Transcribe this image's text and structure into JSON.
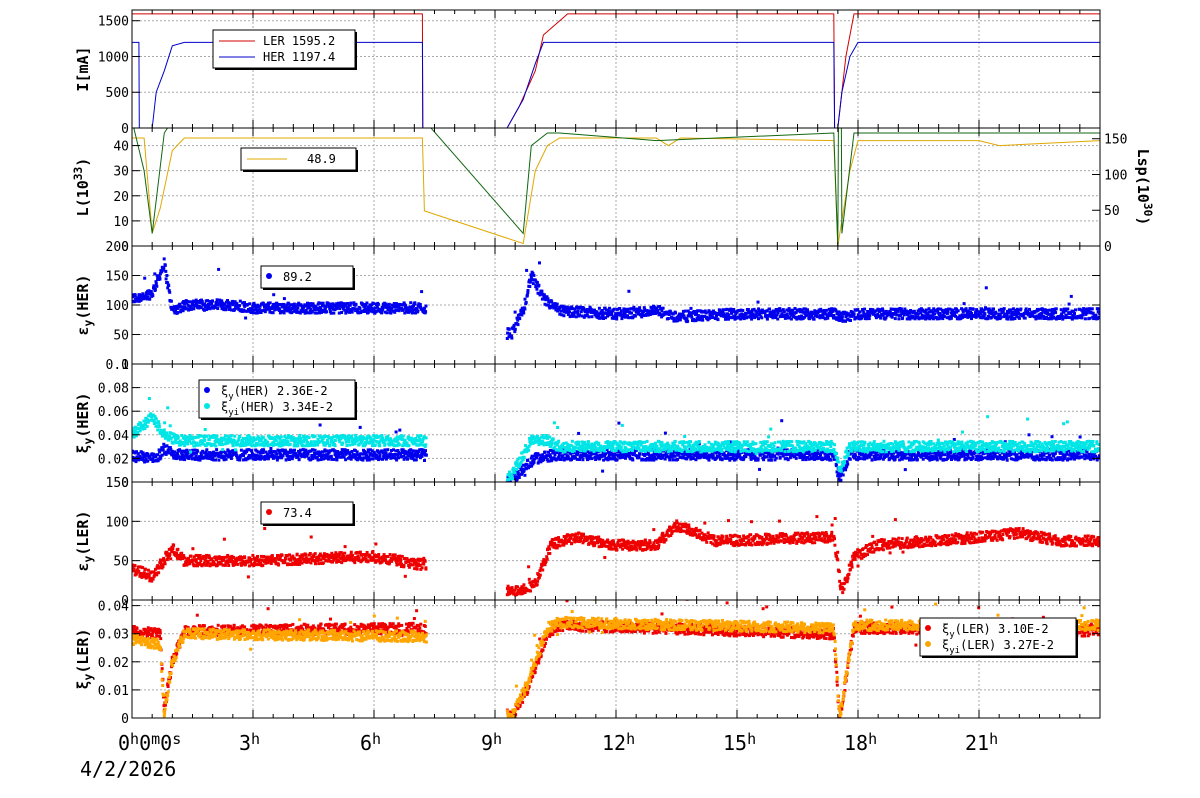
{
  "chart_data": [
    {
      "type": "line",
      "ylabel": "I[mA]",
      "ylim": [
        0,
        1650
      ],
      "yticks": [
        0,
        500,
        1000,
        1500
      ],
      "legend": {
        "placement": "top-left",
        "entries": [
          {
            "name": "LER",
            "value": "1595.2",
            "color": "#d40000"
          },
          {
            "name": "HER",
            "value": "1197.4",
            "color": "#0000cc"
          }
        ]
      },
      "series": [
        {
          "name": "LER",
          "color": "#d40000",
          "points": [
            [
              0,
              1595
            ],
            [
              7.2,
              1595
            ],
            [
              7.21,
              0
            ],
            [
              9.3,
              0
            ],
            [
              9.6,
              300
            ],
            [
              10.0,
              800
            ],
            [
              10.2,
              1300
            ],
            [
              10.8,
              1595
            ],
            [
              17.4,
              1595
            ],
            [
              17.42,
              0
            ],
            [
              17.5,
              0
            ],
            [
              17.7,
              1000
            ],
            [
              17.9,
              1595
            ],
            [
              24,
              1595
            ]
          ]
        },
        {
          "name": "HER",
          "color": "#0000cc",
          "points": [
            [
              0,
              1197
            ],
            [
              0.17,
              1197
            ],
            [
              0.18,
              0
            ],
            [
              0.5,
              0
            ],
            [
              0.6,
              500
            ],
            [
              0.8,
              800
            ],
            [
              1.0,
              1150
            ],
            [
              1.3,
              1197
            ],
            [
              7.2,
              1197
            ],
            [
              7.21,
              0
            ],
            [
              9.3,
              0
            ],
            [
              9.7,
              400
            ],
            [
              10.0,
              900
            ],
            [
              10.2,
              1197
            ],
            [
              17.4,
              1197
            ],
            [
              17.42,
              0
            ],
            [
              17.5,
              0
            ],
            [
              17.6,
              500
            ],
            [
              17.8,
              1000
            ],
            [
              18.0,
              1197
            ],
            [
              24,
              1197
            ]
          ]
        }
      ]
    },
    {
      "type": "line",
      "ylabel": "L(10",
      "ylabel_sup": "33",
      "ylabel_end": ")",
      "ylim": [
        0,
        47
      ],
      "yticks": [
        0,
        10,
        20,
        30,
        40
      ],
      "y2label": "Lsp(10",
      "y2label_sup": "30",
      "y2label_end": ")",
      "y2lim": [
        0,
        165
      ],
      "y2ticks": [
        0,
        50,
        100,
        150
      ],
      "legend": {
        "placement": "top-left",
        "entries": [
          {
            "name": "",
            "value": "48.9",
            "color": "#e0a800"
          }
        ]
      },
      "series": [
        {
          "name": "L",
          "color": "#e0a800",
          "points": [
            [
              0,
              43
            ],
            [
              0.3,
              43
            ],
            [
              0.5,
              5
            ],
            [
              0.7,
              15
            ],
            [
              1.0,
              38
            ],
            [
              1.3,
              43
            ],
            [
              7.2,
              43
            ],
            [
              7.25,
              14
            ],
            [
              9.7,
              1
            ],
            [
              10.0,
              30
            ],
            [
              10.3,
              40
            ],
            [
              10.6,
              43
            ],
            [
              13,
              43
            ],
            [
              13.3,
              40
            ],
            [
              13.6,
              43
            ],
            [
              17.4,
              42
            ],
            [
              17.5,
              0
            ],
            [
              17.8,
              30
            ],
            [
              18.0,
              42
            ],
            [
              21,
              42
            ],
            [
              21.5,
              40
            ],
            [
              24,
              42
            ]
          ]
        },
        {
          "name": "Lsp",
          "color": "#116611",
          "points": [
            [
              0,
              50
            ],
            [
              0.3,
              30
            ],
            [
              0.5,
              5
            ],
            [
              0.8,
              45
            ],
            [
              1.0,
              50
            ],
            [
              7.2,
              50
            ],
            [
              7.25,
              50
            ],
            [
              9.7,
              5
            ],
            [
              9.9,
              40
            ],
            [
              10.3,
              45
            ],
            [
              10.6,
              45
            ],
            [
              13,
              42
            ],
            [
              17.4,
              45
            ],
            [
              17.5,
              0
            ],
            [
              17.55,
              160
            ],
            [
              17.6,
              5
            ],
            [
              17.9,
              45
            ],
            [
              24,
              45
            ]
          ]
        }
      ]
    },
    {
      "type": "scatter",
      "ylabel": "ε",
      "ylabel_sub": "y",
      "ylabel_end": "(HER)",
      "ylim": [
        0,
        200
      ],
      "yticks": [
        0,
        50,
        100,
        150,
        200
      ],
      "legend": {
        "placement": "top-left",
        "entries": [
          {
            "name": "",
            "value": "89.2",
            "color": "#0000ee"
          }
        ]
      },
      "series": [
        {
          "name": "",
          "color": "#0000ee",
          "gaps": [
            [
              7.3,
              9.3
            ]
          ],
          "profile": [
            [
              0,
              110
            ],
            [
              0.5,
              120
            ],
            [
              0.8,
              170
            ],
            [
              1.0,
              90
            ],
            [
              1.3,
              100
            ],
            [
              2.5,
              100
            ],
            [
              3.0,
              95
            ],
            [
              6.0,
              95
            ],
            [
              7.2,
              95
            ],
            [
              9.4,
              50
            ],
            [
              9.7,
              90
            ],
            [
              9.9,
              150
            ],
            [
              10.2,
              110
            ],
            [
              10.6,
              90
            ],
            [
              12.0,
              85
            ],
            [
              13.0,
              90
            ],
            [
              13.5,
              80
            ],
            [
              15.0,
              85
            ],
            [
              17.4,
              85
            ],
            [
              17.6,
              80
            ],
            [
              18.0,
              85
            ],
            [
              24,
              85
            ]
          ]
        }
      ]
    },
    {
      "type": "scatter",
      "ylabel": "ξ",
      "ylabel_sub": "y",
      "ylabel_end": "(HER)",
      "ylim": [
        0,
        0.1
      ],
      "yticks": [
        0,
        0.02,
        0.04,
        0.06,
        0.08,
        0.1
      ],
      "ytick_labels": [
        "0",
        "0.02",
        "0.04",
        "0.06",
        "0.08",
        "0.1"
      ],
      "legend": {
        "placement": "top-left",
        "entries": [
          {
            "name": "ξ",
            "sub": "y",
            "suffix": "(HER)",
            "value": "2.36E-2",
            "color": "#0000ee"
          },
          {
            "name": "ξ",
            "sub": "yi",
            "suffix": "(HER)",
            "value": "3.34E-2",
            "color": "#00e5e5"
          }
        ]
      },
      "series": [
        {
          "name": "ξy(HER)",
          "color": "#0000ee",
          "gaps": [
            [
              7.3,
              9.3
            ]
          ],
          "profile": [
            [
              0,
              0.022
            ],
            [
              0.6,
              0.02
            ],
            [
              0.8,
              0.028
            ],
            [
              1.1,
              0.023
            ],
            [
              7.2,
              0.023
            ],
            [
              9.4,
              0.002
            ],
            [
              10.0,
              0.02
            ],
            [
              10.5,
              0.023
            ],
            [
              17.4,
              0.023
            ],
            [
              17.55,
              0.002
            ],
            [
              17.8,
              0.023
            ],
            [
              24,
              0.023
            ]
          ]
        },
        {
          "name": "ξyi(HER)",
          "color": "#00e5e5",
          "gaps": [
            [
              7.3,
              9.3
            ]
          ],
          "profile": [
            [
              0,
              0.04
            ],
            [
              0.5,
              0.055
            ],
            [
              0.8,
              0.04
            ],
            [
              1.2,
              0.035
            ],
            [
              7.2,
              0.035
            ],
            [
              9.4,
              0.005
            ],
            [
              9.9,
              0.035
            ],
            [
              10.3,
              0.035
            ],
            [
              10.6,
              0.03
            ],
            [
              17.4,
              0.03
            ],
            [
              17.55,
              0.01
            ],
            [
              17.8,
              0.03
            ],
            [
              24,
              0.03
            ]
          ]
        }
      ]
    },
    {
      "type": "scatter",
      "ylabel": "ε",
      "ylabel_sub": "y",
      "ylabel_end": "(LER)",
      "ylim": [
        0,
        150
      ],
      "yticks": [
        0,
        50,
        100,
        150
      ],
      "legend": {
        "placement": "top-left",
        "entries": [
          {
            "name": "",
            "value": "73.4",
            "color": "#ee0000"
          }
        ]
      },
      "series": [
        {
          "name": "",
          "color": "#ee0000",
          "gaps": [
            [
              7.3,
              9.3
            ]
          ],
          "profile": [
            [
              0,
              40
            ],
            [
              0.5,
              30
            ],
            [
              1.0,
              65
            ],
            [
              1.3,
              50
            ],
            [
              3.0,
              50
            ],
            [
              6.0,
              55
            ],
            [
              7.2,
              45
            ],
            [
              9.4,
              10
            ],
            [
              10.0,
              20
            ],
            [
              10.4,
              70
            ],
            [
              11.0,
              80
            ],
            [
              12.0,
              70
            ],
            [
              13.0,
              70
            ],
            [
              13.5,
              95
            ],
            [
              14.0,
              85
            ],
            [
              14.5,
              75
            ],
            [
              17.4,
              80
            ],
            [
              17.6,
              10
            ],
            [
              17.9,
              55
            ],
            [
              18.5,
              70
            ],
            [
              21.0,
              80
            ],
            [
              22.0,
              85
            ],
            [
              23.0,
              75
            ],
            [
              24,
              75
            ]
          ]
        }
      ]
    },
    {
      "type": "scatter",
      "ylabel": "ξ",
      "ylabel_sub": "y",
      "ylabel_end": "(LER)",
      "ylim": [
        0,
        0.042
      ],
      "yticks": [
        0,
        0.01,
        0.02,
        0.03,
        0.04
      ],
      "ytick_labels": [
        "0",
        "0.01",
        "0.02",
        "0.03",
        "0.04"
      ],
      "legend": {
        "placement": "top-right",
        "entries": [
          {
            "name": "ξ",
            "sub": "y",
            "suffix": "(LER)",
            "value": "3.10E-2",
            "color": "#ee0000"
          },
          {
            "name": "ξ",
            "sub": "yi",
            "suffix": "(LER)",
            "value": "3.27E-2",
            "color": "#ffa500"
          }
        ]
      },
      "series": [
        {
          "name": "ξy(LER)",
          "color": "#ee0000",
          "gaps": [
            [
              7.3,
              9.3
            ]
          ],
          "profile": [
            [
              0,
              0.031
            ],
            [
              0.7,
              0.03
            ],
            [
              0.8,
              0.003
            ],
            [
              1.0,
              0.02
            ],
            [
              1.3,
              0.031
            ],
            [
              7.2,
              0.032
            ],
            [
              9.4,
              0.0
            ],
            [
              9.8,
              0.01
            ],
            [
              10.3,
              0.03
            ],
            [
              10.6,
              0.033
            ],
            [
              17.4,
              0.03
            ],
            [
              17.55,
              0.0
            ],
            [
              17.9,
              0.032
            ],
            [
              24,
              0.031
            ]
          ]
        },
        {
          "name": "ξyi(LER)",
          "color": "#ffa500",
          "gaps": [
            [
              7.3,
              9.3
            ]
          ],
          "profile": [
            [
              0,
              0.028
            ],
            [
              0.7,
              0.026
            ],
            [
              0.8,
              0.002
            ],
            [
              1.0,
              0.02
            ],
            [
              1.3,
              0.03
            ],
            [
              7.2,
              0.029
            ],
            [
              9.4,
              0.0
            ],
            [
              9.8,
              0.012
            ],
            [
              10.3,
              0.032
            ],
            [
              10.6,
              0.034
            ],
            [
              17.4,
              0.032
            ],
            [
              17.55,
              0.0
            ],
            [
              17.9,
              0.033
            ],
            [
              24,
              0.033
            ]
          ]
        }
      ]
    }
  ],
  "xaxis": {
    "range_hours": [
      0,
      24
    ],
    "ticks": [
      {
        "hour": 0,
        "label": "0",
        "sup": "h",
        "extra": "0",
        "extra_sup": "m",
        "extra2": "0",
        "extra2_sup": "s"
      },
      {
        "hour": 3,
        "label": "3",
        "sup": "h"
      },
      {
        "hour": 6,
        "label": "6",
        "sup": "h"
      },
      {
        "hour": 9,
        "label": "9",
        "sup": "h"
      },
      {
        "hour": 12,
        "label": "12",
        "sup": "h"
      },
      {
        "hour": 15,
        "label": "15",
        "sup": "h"
      },
      {
        "hour": 18,
        "label": "18",
        "sup": "h"
      },
      {
        "hour": 21,
        "label": "21",
        "sup": "h"
      }
    ],
    "date": "4/2/2026"
  }
}
